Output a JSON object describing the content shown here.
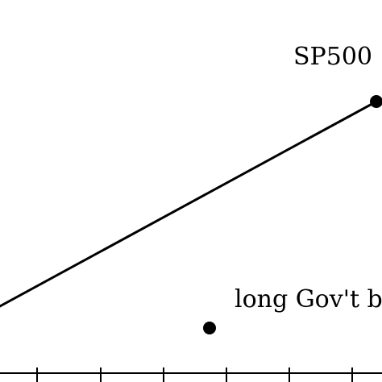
{
  "chart_data": {
    "type": "scatter",
    "points": [
      {
        "label": "SP500",
        "marker": true
      },
      {
        "label": "long Gov't bonds",
        "marker": true
      }
    ],
    "line": {
      "from": "left-edge",
      "to": "SP500"
    }
  }
}
